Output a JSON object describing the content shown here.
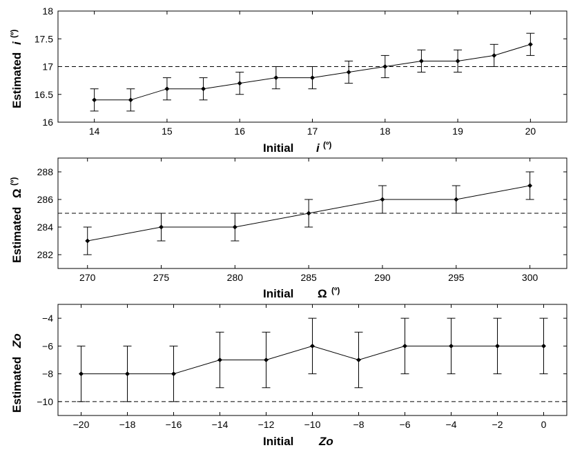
{
  "chart_data": [
    {
      "type": "line",
      "title": "",
      "xlabel": {
        "word": "Initial",
        "symbol": "i",
        "unit": "(º)"
      },
      "ylabel": {
        "word": "Estimated",
        "symbol": "i",
        "unit": "(º)"
      },
      "xlim": [
        13.5,
        20.5
      ],
      "ylim": [
        16,
        18
      ],
      "xticks": [
        "14",
        "15",
        "16",
        "17",
        "18",
        "19",
        "20"
      ],
      "yticks": [
        "16",
        "16.5",
        "17",
        "17.5",
        "18"
      ],
      "reference_line": 17,
      "series": [
        {
          "name": "estimated i",
          "x": [
            14,
            14.5,
            15,
            15.5,
            16,
            16.5,
            17,
            17.5,
            18,
            18.5,
            19,
            19.5,
            20
          ],
          "y": [
            16.4,
            16.4,
            16.6,
            16.6,
            16.7,
            16.8,
            16.8,
            16.9,
            17.0,
            17.1,
            17.1,
            17.2,
            17.4
          ],
          "err": [
            0.2,
            0.2,
            0.2,
            0.2,
            0.2,
            0.2,
            0.2,
            0.2,
            0.2,
            0.2,
            0.2,
            0.2,
            0.2
          ]
        }
      ]
    },
    {
      "type": "line",
      "title": "",
      "xlabel": {
        "word": "Initial",
        "symbol": "Ω",
        "unit": "(º)"
      },
      "ylabel": {
        "word": "Estimated",
        "symbol": "Ω",
        "unit": "(º)"
      },
      "xlim": [
        268,
        302.5
      ],
      "ylim": [
        281,
        289
      ],
      "xticks": [
        "270",
        "275",
        "280",
        "285",
        "290",
        "295",
        "300"
      ],
      "yticks": [
        "282",
        "284",
        "286",
        "288"
      ],
      "reference_line": 285,
      "series": [
        {
          "name": "estimated Omega",
          "x": [
            270,
            275,
            280,
            285,
            290,
            295,
            300
          ],
          "y": [
            283,
            284,
            284,
            285,
            286,
            286,
            287
          ],
          "err": [
            1,
            1,
            1,
            1,
            1,
            1,
            1
          ]
        }
      ]
    },
    {
      "type": "line",
      "title": "",
      "xlabel": {
        "word": "Initial",
        "symbol": "Zo",
        "unit": ""
      },
      "ylabel": {
        "word": "Estimated",
        "symbol": "Zo",
        "unit": ""
      },
      "xlim": [
        -21,
        1
      ],
      "ylim": [
        -11,
        -3
      ],
      "xticks": [
        "−20",
        "−18",
        "−16",
        "−14",
        "−12",
        "−10",
        "−8",
        "−6",
        "−4",
        "−2",
        "0"
      ],
      "yticks": [
        "−10",
        "−8",
        "−6",
        "−4"
      ],
      "reference_line": -10,
      "series": [
        {
          "name": "estimated Zo",
          "x": [
            -20,
            -18,
            -16,
            -14,
            -12,
            -10,
            -8,
            -6,
            -4,
            -2,
            0
          ],
          "y": [
            -8,
            -8,
            -8,
            -7,
            -7,
            -6,
            -7,
            -6,
            -6,
            -6,
            -6
          ],
          "err": [
            2,
            2,
            2,
            2,
            2,
            2,
            2,
            2,
            2,
            2,
            2
          ]
        }
      ]
    }
  ]
}
